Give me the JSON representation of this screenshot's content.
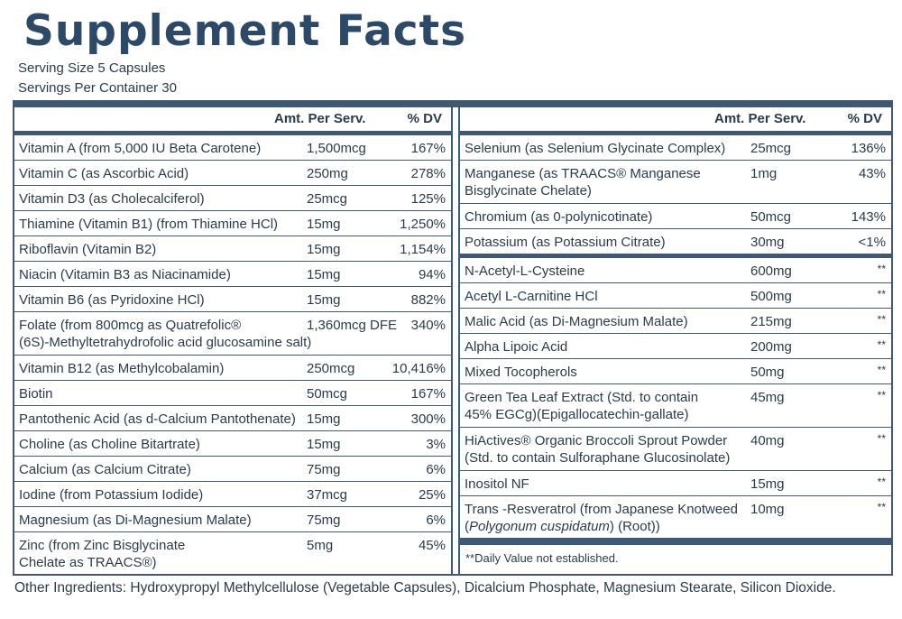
{
  "title": "Supplement Facts",
  "serving_size": "Serving Size 5 Capsules",
  "servings_per_container": "Servings Per Container 30",
  "headers": {
    "amount": "Amt. Per Serv.",
    "dv": "% DV"
  },
  "left_rows": [
    {
      "name": "Vitamin A (from 5,000 IU Beta Carotene)",
      "amount": "1,500mcg",
      "dv": "167%"
    },
    {
      "name": "Vitamin C (as Ascorbic Acid)",
      "amount": "250mg",
      "dv": "278%"
    },
    {
      "name": "Vitamin D3 (as Cholecalciferol)",
      "amount": "25mcg",
      "dv": "125%"
    },
    {
      "name": "Thiamine (Vitamin B1) (from Thiamine HCl)",
      "amount": "15mg",
      "dv": "1,250%"
    },
    {
      "name": "Riboflavin (Vitamin B2)",
      "amount": "15mg",
      "dv": "1,154%"
    },
    {
      "name": "Niacin (Vitamin B3 as Niacinamide)",
      "amount": "15mg",
      "dv": "94%"
    },
    {
      "name": "Vitamin B6 (as Pyridoxine HCl)",
      "amount": "15mg",
      "dv": "882%"
    },
    {
      "name": "Folate (from 800mcg as Quatrefolic®",
      "name2": "(6S)-Methyltetrahydrofolic acid glucosamine salt)",
      "amount": "1,360mcg DFE",
      "dv": "340%"
    },
    {
      "name": "Vitamin B12 (as Methylcobalamin)",
      "amount": "250mcg",
      "dv": "10,416%"
    },
    {
      "name": "Biotin",
      "amount": "50mcg",
      "dv": "167%"
    },
    {
      "name": "Pantothenic Acid (as d-Calcium Pantothenate)",
      "amount": "15mg",
      "dv": "300%"
    },
    {
      "name": "Choline (as Choline Bitartrate)",
      "amount": "15mg",
      "dv": "3%"
    },
    {
      "name": "Calcium (as Calcium Citrate)",
      "amount": "75mg",
      "dv": "6%"
    },
    {
      "name": "Iodine (from Potassium Iodide)",
      "amount": "37mcg",
      "dv": "25%"
    },
    {
      "name": "Magnesium (as Di-Magnesium Malate)",
      "amount": "75mg",
      "dv": "6%"
    },
    {
      "name": "Zinc (from Zinc Bisglycinate",
      "name2": "Chelate as TRAACS®)",
      "amount": "5mg",
      "dv": "45%"
    }
  ],
  "right_group1": [
    {
      "name": "Selenium (as Selenium Glycinate Complex)",
      "amount": "25mcg",
      "dv": "136%"
    },
    {
      "name": "Manganese (as TRAACS® Manganese",
      "name2": "Bisglycinate Chelate)",
      "amount": "1mg",
      "dv": "43%"
    },
    {
      "name": "Chromium (as 0-polynicotinate)",
      "amount": "50mcg",
      "dv": "143%"
    },
    {
      "name": "Potassium (as Potassium Citrate)",
      "amount": "30mg",
      "dv": "<1%"
    }
  ],
  "right_group2": [
    {
      "name": "N-Acetyl-L-Cysteine",
      "amount": "600mg",
      "dv": "**"
    },
    {
      "name": "Acetyl L-Carnitine HCl",
      "amount": "500mg",
      "dv": "**"
    },
    {
      "name": "Malic Acid (as Di-Magnesium Malate)",
      "amount": "215mg",
      "dv": "**"
    },
    {
      "name": "Alpha Lipoic Acid",
      "amount": "200mg",
      "dv": "**"
    },
    {
      "name": "Mixed Tocopherols",
      "amount": "50mg",
      "dv": "**"
    },
    {
      "name": "Green Tea Leaf Extract (Std. to contain",
      "name2": "45% EGCg)(Epigallocatechin-gallate)",
      "amount": "45mg",
      "dv": "**"
    },
    {
      "name": "HiActives® Organic Broccoli Sprout Powder",
      "name2": "(Std. to contain Sulforaphane Glucosinolate)",
      "amount": "40mg",
      "dv": "**"
    },
    {
      "name": "Inositol NF",
      "amount": "15mg",
      "dv": "**"
    },
    {
      "name": "Trans -Resveratrol (from Japanese Knotweed",
      "name2_pre": "(",
      "name2_italic": "Polygonum cuspidatum",
      "name2_post": ") (Root))",
      "amount": "10mg",
      "dv": "**"
    }
  ],
  "footnote": "**Daily Value not established.",
  "other_ingredients": "Other Ingredients: Hydroxypropyl Methylcellulose (Vegetable Capsules), Dicalcium Phosphate, Magnesium Stearate, Silicon Dioxide."
}
